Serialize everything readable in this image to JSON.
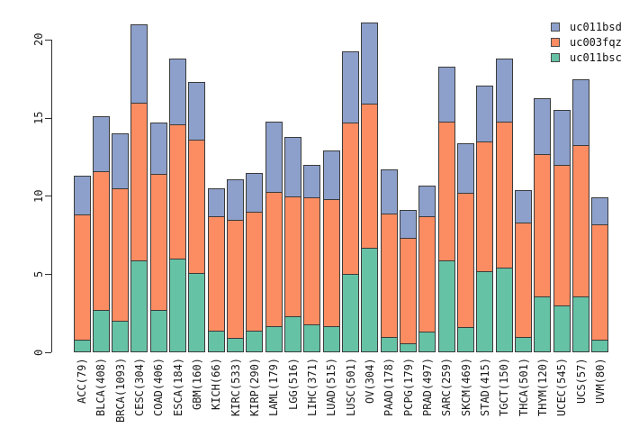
{
  "chart_data": {
    "type": "bar",
    "stacked": true,
    "title": "",
    "xlabel": "",
    "ylabel": "",
    "grid": false,
    "ylim": [
      0,
      21.2
    ],
    "yticks": [
      0,
      5,
      10,
      15,
      20
    ],
    "legend_position": "top-right",
    "legend_order": [
      "uc011bsd",
      "uc003fqz",
      "uc011bsc"
    ],
    "categories": [
      "ACC(79)",
      "BLCA(408)",
      "BRCA(1093)",
      "CESC(304)",
      "COAD(406)",
      "ESCA(184)",
      "GBM(160)",
      "KICH(66)",
      "KIRC(533)",
      "KIRP(290)",
      "LAML(179)",
      "LGG(516)",
      "LIHC(371)",
      "LUAD(515)",
      "LUSC(501)",
      "OV(304)",
      "PAAD(178)",
      "PCPG(179)",
      "PRAD(497)",
      "SARC(259)",
      "SKCM(469)",
      "STAD(415)",
      "TGCT(150)",
      "THCA(501)",
      "THYM(120)",
      "UCEC(545)",
      "UCS(57)",
      "UVM(80)"
    ],
    "series": [
      {
        "name": "uc011bsc",
        "color": "#66c2a5",
        "stack_position": "bottom",
        "values": [
          0.8,
          2.7,
          2.0,
          5.9,
          2.7,
          6.0,
          5.1,
          1.4,
          0.9,
          1.4,
          1.7,
          2.3,
          1.8,
          1.7,
          5.0,
          6.7,
          1.0,
          0.6,
          1.3,
          5.9,
          1.6,
          5.2,
          5.4,
          1.0,
          3.6,
          3.0,
          3.6,
          0.8
        ]
      },
      {
        "name": "uc003fqz",
        "color": "#fc8d62",
        "stack_position": "middle",
        "values": [
          8.0,
          8.9,
          8.5,
          10.1,
          8.7,
          8.6,
          8.5,
          7.3,
          7.6,
          7.6,
          8.6,
          7.7,
          8.1,
          8.1,
          9.7,
          9.2,
          7.9,
          6.7,
          7.4,
          8.9,
          8.6,
          8.3,
          9.4,
          7.3,
          9.1,
          9.0,
          9.7,
          7.4
        ]
      },
      {
        "name": "uc011bsd",
        "color": "#8da0cb",
        "stack_position": "top",
        "values": [
          2.5,
          3.5,
          3.5,
          5.0,
          3.3,
          4.2,
          3.7,
          1.8,
          2.6,
          2.5,
          4.5,
          3.8,
          2.1,
          3.1,
          4.6,
          5.2,
          2.8,
          1.8,
          2.0,
          3.5,
          3.2,
          3.6,
          4.0,
          2.1,
          3.6,
          3.5,
          4.2,
          1.7
        ]
      }
    ],
    "totals": [
      11.3,
      15.1,
      14.0,
      21.0,
      14.7,
      18.8,
      17.3,
      10.5,
      11.1,
      11.5,
      14.8,
      13.8,
      12.0,
      12.9,
      19.3,
      21.1,
      11.7,
      9.1,
      10.7,
      18.3,
      13.4,
      17.1,
      18.8,
      10.4,
      16.3,
      15.5,
      17.5,
      9.9
    ]
  }
}
